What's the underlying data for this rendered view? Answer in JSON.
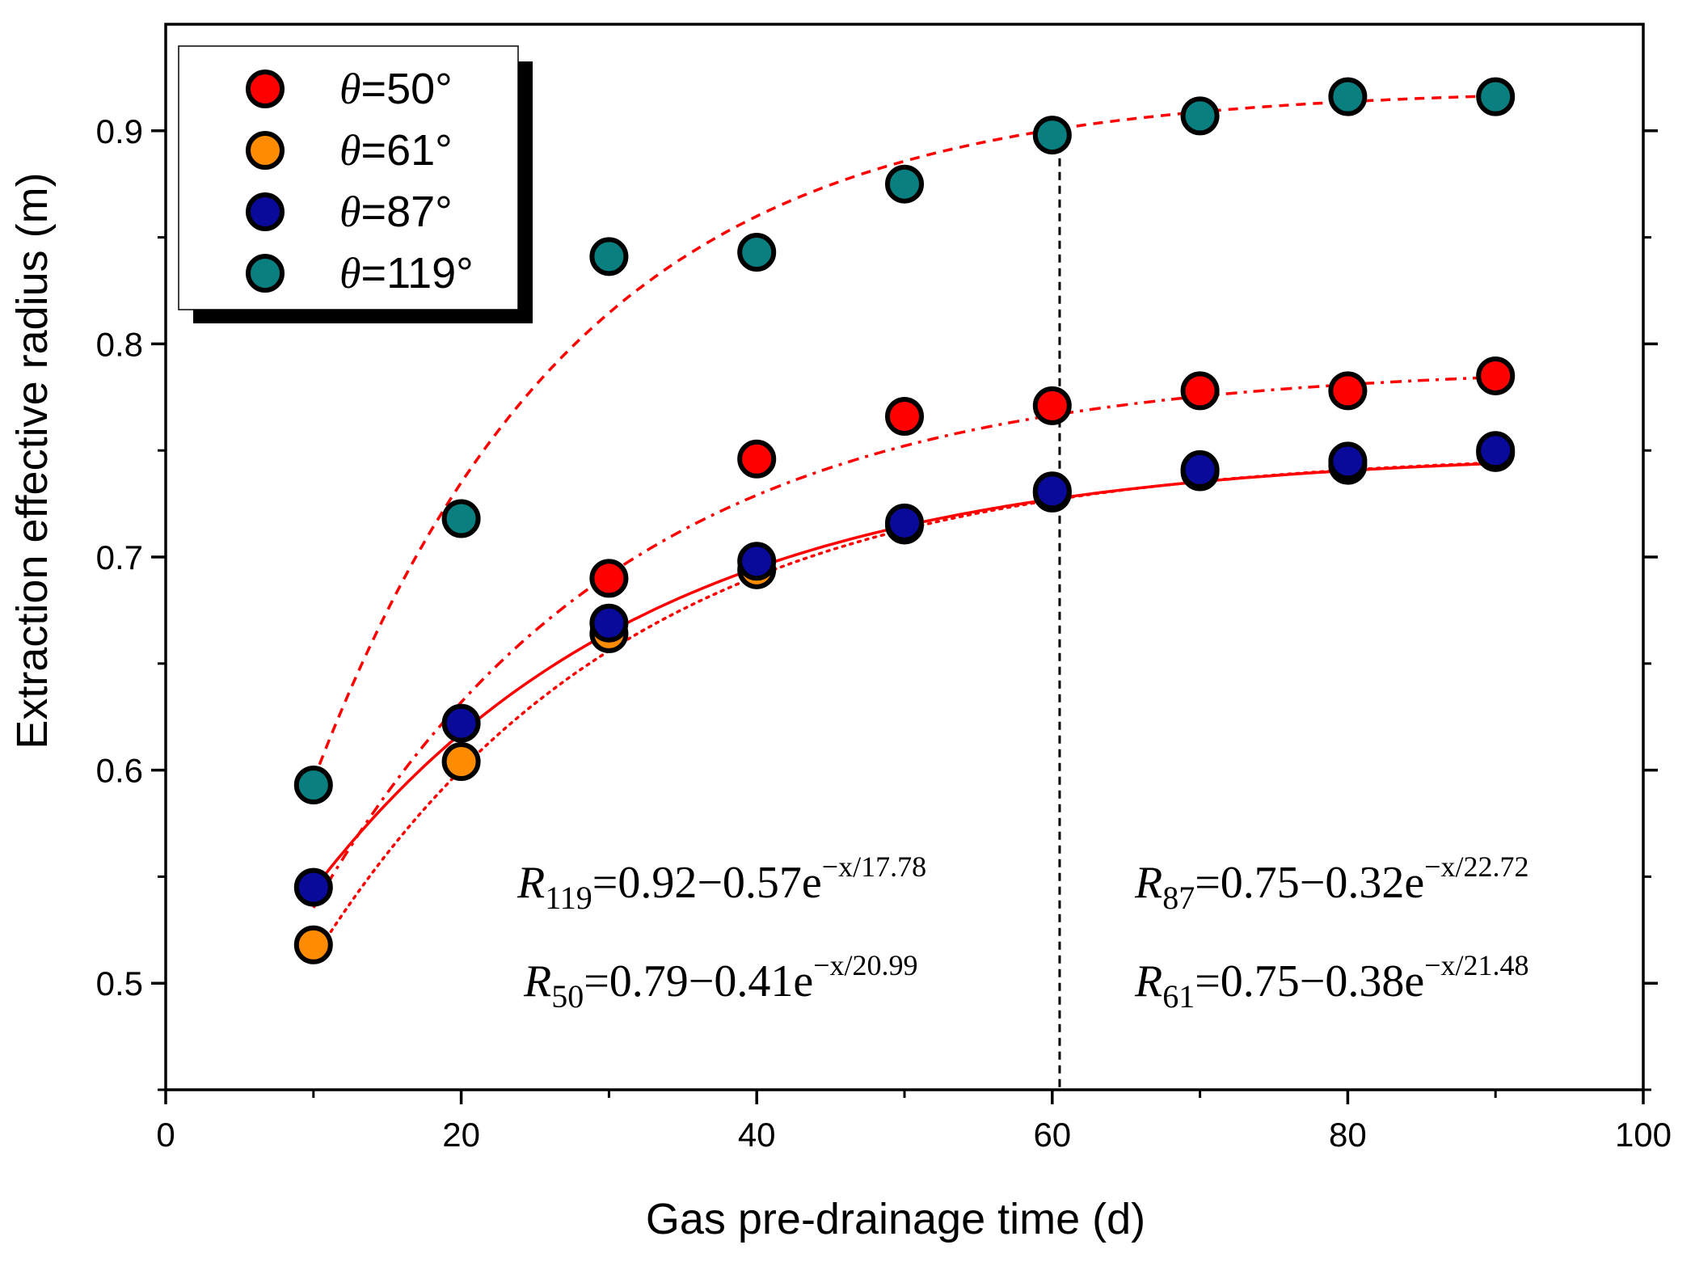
{
  "chart_data": {
    "type": "scatter",
    "xlabel": "Gas pre-drainage time (d)",
    "ylabel": "Extraction effective radius (m)",
    "xlim": [
      0,
      100
    ],
    "ylim": [
      0.45,
      0.95
    ],
    "xticks": [
      0,
      20,
      40,
      60,
      80,
      100
    ],
    "yticks": [
      0.5,
      0.6,
      0.7,
      0.8,
      0.9
    ],
    "xtick_labels": [
      "0",
      "20",
      "40",
      "60",
      "80",
      "100"
    ],
    "ytick_labels": [
      "0.5",
      "0.6",
      "0.7",
      "0.8",
      "0.9"
    ],
    "grid": false,
    "legend_position": "top-left",
    "vline_x": 60.5,
    "series": [
      {
        "name": "θ=50°",
        "legend_symbol": "θ",
        "legend_text": "=50°",
        "color": "#ff0000",
        "x": [
          10,
          20,
          30,
          40,
          50,
          60,
          70,
          80,
          90
        ],
        "y": [
          null,
          null,
          0.69,
          0.746,
          0.766,
          0.771,
          0.778,
          0.778,
          0.785
        ],
        "fit": {
          "A": 0.79,
          "B": 0.41,
          "tau": 20.99,
          "style": "dashdot"
        }
      },
      {
        "name": "θ=61°",
        "legend_symbol": "θ",
        "legend_text": "=61°",
        "color": "#ff8c00",
        "x": [
          10,
          20,
          30,
          40,
          50,
          60,
          70,
          80,
          90
        ],
        "y": [
          0.518,
          0.604,
          0.664,
          0.694,
          0.715,
          0.73,
          0.74,
          0.743,
          0.749
        ],
        "fit": {
          "A": 0.75,
          "B": 0.38,
          "tau": 21.48,
          "style": "dotted"
        }
      },
      {
        "name": "θ=87°",
        "legend_symbol": "θ",
        "legend_text": "=87°",
        "color": "#0a0a9a",
        "x": [
          10,
          20,
          30,
          40,
          50,
          60,
          70,
          80,
          90
        ],
        "y": [
          0.545,
          0.622,
          0.669,
          0.698,
          0.716,
          0.731,
          0.741,
          0.745,
          0.75
        ],
        "fit": {
          "A": 0.75,
          "B": 0.32,
          "tau": 22.72,
          "style": "solid"
        }
      },
      {
        "name": "θ=119°",
        "legend_symbol": "θ",
        "legend_text": "=119°",
        "color": "#0a7f7f",
        "x": [
          10,
          20,
          30,
          40,
          50,
          60,
          70,
          80,
          90
        ],
        "y": [
          0.593,
          0.718,
          0.841,
          0.843,
          0.875,
          0.898,
          0.907,
          0.916,
          0.916
        ],
        "fit": {
          "A": 0.92,
          "B": 0.57,
          "tau": 17.78,
          "style": "dashed"
        }
      }
    ],
    "annotations": [
      {
        "R": "R",
        "sub": "119",
        "eq": "=0.92−0.57e",
        "exp": "−x/17.78"
      },
      {
        "R": "R",
        "sub": "50",
        "eq": "=0.79−0.41e",
        "exp": "−x/20.99"
      },
      {
        "R": "R",
        "sub": "87",
        "eq": "=0.75−0.32e",
        "exp": "−x/22.72"
      },
      {
        "R": "R",
        "sub": "61",
        "eq": "=0.75−0.38e",
        "exp": "−x/21.48"
      }
    ]
  }
}
